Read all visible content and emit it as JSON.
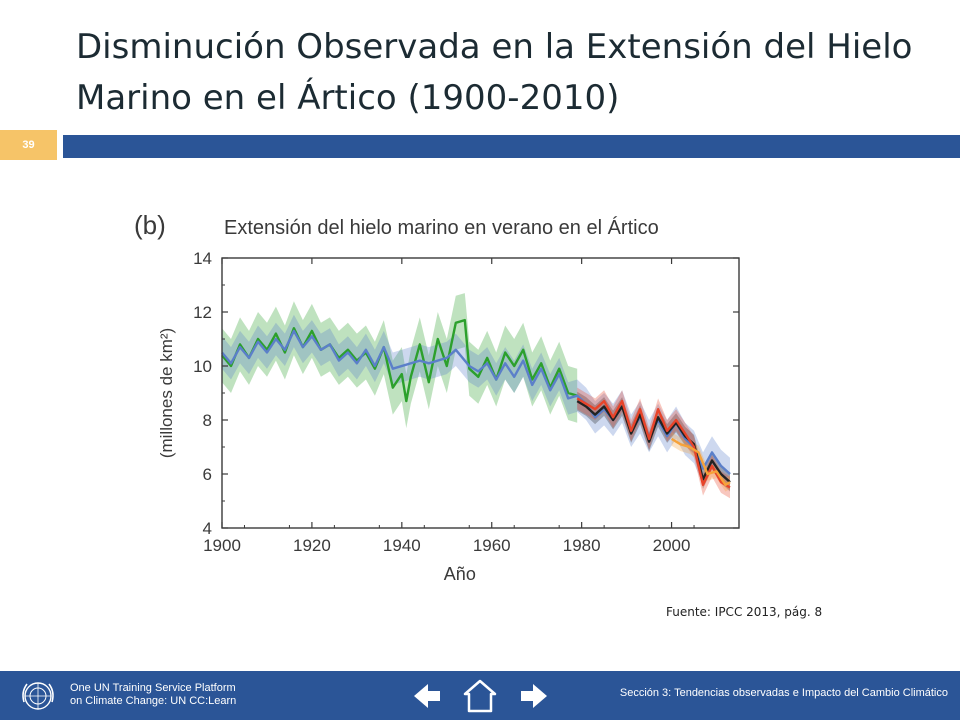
{
  "slide": {
    "title_line1": "Disminución Observada en la Extensión del Hielo",
    "title_line2": "Marino en el Ártico (1900-2010)",
    "page_number": "39",
    "source_note": "Fuente: IPCC 2013, pág. 8"
  },
  "footer": {
    "platform_line1": "One UN Training Service Platform",
    "platform_line2": "on Climate Change: UN CC:Learn",
    "section_label": "Sección 3: Tendencias observadas e Impacto del Cambio Climático",
    "icons": [
      "un-emblem-icon",
      "arrow-left-icon",
      "home-icon",
      "arrow-right-icon"
    ]
  },
  "colors": {
    "title_bar": "#2b5597",
    "page_badge": "#f6c468",
    "green_series": "#2ca02c",
    "blue_series": "#5b7fc9",
    "black_series": "#222222",
    "red_series": "#e8442a",
    "orange_series": "#f6a23a"
  },
  "chart_data": {
    "type": "line",
    "panel_label": "(b)",
    "title": "Extensión del hielo marino en verano en el Ártico",
    "xlabel": "Año",
    "ylabel": "(millones de km²)",
    "xlim": [
      1900,
      2015
    ],
    "ylim": [
      4,
      14
    ],
    "x_ticks": [
      1900,
      1920,
      1940,
      1960,
      1980,
      2000
    ],
    "y_ticks": [
      4,
      6,
      8,
      10,
      12,
      14
    ],
    "grid": false,
    "legend": "none",
    "series": [
      {
        "color": "#2ca02c",
        "band": 1.0,
        "points": [
          [
            1900,
            10.4
          ],
          [
            1902,
            10.0
          ],
          [
            1904,
            10.8
          ],
          [
            1906,
            10.3
          ],
          [
            1908,
            11.0
          ],
          [
            1910,
            10.6
          ],
          [
            1912,
            11.2
          ],
          [
            1914,
            10.5
          ],
          [
            1916,
            11.4
          ],
          [
            1918,
            10.7
          ],
          [
            1920,
            11.3
          ],
          [
            1922,
            10.6
          ],
          [
            1924,
            10.8
          ],
          [
            1926,
            10.3
          ],
          [
            1928,
            10.6
          ],
          [
            1930,
            10.2
          ],
          [
            1932,
            10.5
          ],
          [
            1934,
            9.9
          ],
          [
            1936,
            10.7
          ],
          [
            1938,
            9.2
          ],
          [
            1940,
            9.7
          ],
          [
            1941,
            8.7
          ],
          [
            1942,
            9.6
          ],
          [
            1944,
            10.8
          ],
          [
            1946,
            9.4
          ],
          [
            1948,
            11.0
          ],
          [
            1950,
            10.0
          ],
          [
            1952,
            11.6
          ],
          [
            1954,
            11.7
          ],
          [
            1955,
            9.9
          ],
          [
            1957,
            9.6
          ],
          [
            1959,
            10.3
          ],
          [
            1961,
            9.5
          ],
          [
            1963,
            10.5
          ],
          [
            1965,
            10.0
          ],
          [
            1967,
            10.6
          ],
          [
            1969,
            9.5
          ],
          [
            1971,
            10.1
          ],
          [
            1973,
            9.2
          ],
          [
            1975,
            9.9
          ],
          [
            1977,
            9.0
          ],
          [
            1979,
            8.9
          ]
        ]
      },
      {
        "color": "#5b7fc9",
        "band": 0.6,
        "points": [
          [
            1900,
            10.5
          ],
          [
            1902,
            10.1
          ],
          [
            1904,
            10.7
          ],
          [
            1906,
            10.3
          ],
          [
            1908,
            10.9
          ],
          [
            1910,
            10.5
          ],
          [
            1912,
            11.0
          ],
          [
            1914,
            10.6
          ],
          [
            1916,
            11.3
          ],
          [
            1918,
            10.7
          ],
          [
            1920,
            11.1
          ],
          [
            1922,
            10.6
          ],
          [
            1924,
            10.8
          ],
          [
            1926,
            10.2
          ],
          [
            1928,
            10.5
          ],
          [
            1930,
            10.1
          ],
          [
            1932,
            10.6
          ],
          [
            1934,
            10.0
          ],
          [
            1936,
            10.7
          ],
          [
            1938,
            9.9
          ],
          [
            1944,
            10.2
          ],
          [
            1946,
            10.1
          ],
          [
            1950,
            10.3
          ],
          [
            1952,
            10.6
          ],
          [
            1955,
            10.0
          ],
          [
            1957,
            9.8
          ],
          [
            1959,
            10.1
          ],
          [
            1961,
            9.5
          ],
          [
            1963,
            10.1
          ],
          [
            1965,
            9.6
          ],
          [
            1967,
            10.2
          ],
          [
            1969,
            9.3
          ],
          [
            1971,
            9.9
          ],
          [
            1973,
            9.1
          ],
          [
            1975,
            9.7
          ],
          [
            1977,
            8.8
          ],
          [
            1979,
            8.9
          ],
          [
            1981,
            8.6
          ],
          [
            1983,
            8.1
          ],
          [
            1985,
            8.4
          ],
          [
            1987,
            8.0
          ],
          [
            1989,
            8.5
          ],
          [
            1991,
            7.6
          ],
          [
            1993,
            8.1
          ],
          [
            1995,
            7.4
          ],
          [
            1997,
            8.0
          ],
          [
            1999,
            7.4
          ],
          [
            2001,
            7.9
          ],
          [
            2003,
            7.3
          ],
          [
            2005,
            7.0
          ],
          [
            2007,
            6.2
          ],
          [
            2009,
            6.8
          ],
          [
            2011,
            6.3
          ],
          [
            2013,
            6.0
          ]
        ]
      },
      {
        "color": "#222222",
        "band": 0.35,
        "points": [
          [
            1979,
            8.7
          ],
          [
            1981,
            8.5
          ],
          [
            1983,
            8.2
          ],
          [
            1985,
            8.5
          ],
          [
            1987,
            8.0
          ],
          [
            1989,
            8.5
          ],
          [
            1991,
            7.5
          ],
          [
            1993,
            8.2
          ],
          [
            1995,
            7.2
          ],
          [
            1997,
            8.1
          ],
          [
            1999,
            7.5
          ],
          [
            2001,
            7.9
          ],
          [
            2003,
            7.4
          ],
          [
            2005,
            7.1
          ],
          [
            2007,
            5.8
          ],
          [
            2009,
            6.5
          ],
          [
            2011,
            6.0
          ],
          [
            2013,
            5.7
          ]
        ]
      },
      {
        "color": "#e8442a",
        "band": 0.4,
        "points": [
          [
            1979,
            8.8
          ],
          [
            1981,
            8.6
          ],
          [
            1983,
            8.4
          ],
          [
            1985,
            8.7
          ],
          [
            1987,
            8.1
          ],
          [
            1989,
            8.7
          ],
          [
            1991,
            7.6
          ],
          [
            1993,
            8.4
          ],
          [
            1995,
            7.3
          ],
          [
            1997,
            8.4
          ],
          [
            1999,
            7.6
          ],
          [
            2001,
            8.0
          ],
          [
            2003,
            7.5
          ],
          [
            2005,
            7.0
          ],
          [
            2007,
            5.6
          ],
          [
            2009,
            6.3
          ],
          [
            2011,
            5.7
          ],
          [
            2013,
            5.5
          ]
        ]
      },
      {
        "color": "#f6a23a",
        "band": 0.25,
        "points": [
          [
            2000,
            7.3
          ],
          [
            2002,
            7.1
          ],
          [
            2004,
            7.0
          ],
          [
            2006,
            6.8
          ],
          [
            2008,
            6.0
          ],
          [
            2010,
            6.1
          ],
          [
            2012,
            5.6
          ],
          [
            2013,
            5.7
          ]
        ]
      }
    ]
  }
}
